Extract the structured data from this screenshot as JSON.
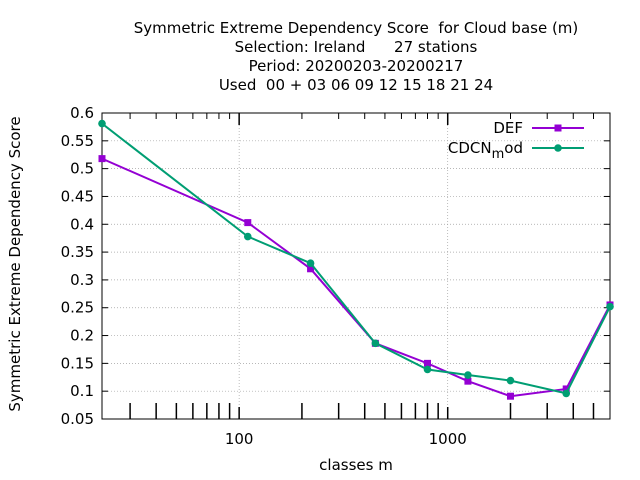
{
  "title_lines": [
    "Symmetric Extreme Dependency Score  for Cloud base (m)",
    "Selection: Ireland      27 stations",
    "Period: 20200203-20200217",
    "Used  00 + 03 06 09 12 15 18 21 24"
  ],
  "chart_data": {
    "type": "line",
    "xlabel": "classes m",
    "ylabel": "Symmetric Extreme Dependency Score",
    "x_scale": "log",
    "xlim": [
      22,
      6000
    ],
    "ylim": [
      0.05,
      0.6
    ],
    "x_tick_labels": [
      "100",
      "1000"
    ],
    "x_ticks": [
      100,
      1000
    ],
    "y_ticks": [
      0.05,
      0.1,
      0.15,
      0.2,
      0.25,
      0.3,
      0.35,
      0.4,
      0.45,
      0.5,
      0.55,
      0.6
    ],
    "y_tick_labels": [
      "0.05",
      "0.1",
      "0.15",
      "0.2",
      "0.25",
      "0.3",
      "0.35",
      "0.4",
      "0.45",
      "0.5",
      "0.55",
      "0.6"
    ],
    "grid": true,
    "legend_position": "top-right",
    "series": [
      {
        "name": "DEF",
        "color": "#9400d3",
        "marker": "filled-square",
        "x": [
          22,
          110,
          220,
          450,
          800,
          1250,
          2000,
          3700,
          6000
        ],
        "y": [
          0.518,
          0.403,
          0.32,
          0.186,
          0.15,
          0.118,
          0.091,
          0.104,
          0.255
        ]
      },
      {
        "name": "CDCN_mod",
        "legend_main": "CDCN",
        "legend_sub": "m",
        "legend_tail": "od",
        "color": "#009e73",
        "marker": "filled-circle",
        "x": [
          22,
          110,
          220,
          450,
          800,
          1250,
          2000,
          3700,
          6000
        ],
        "y": [
          0.581,
          0.378,
          0.33,
          0.186,
          0.139,
          0.129,
          0.119,
          0.096,
          0.252
        ]
      }
    ]
  }
}
